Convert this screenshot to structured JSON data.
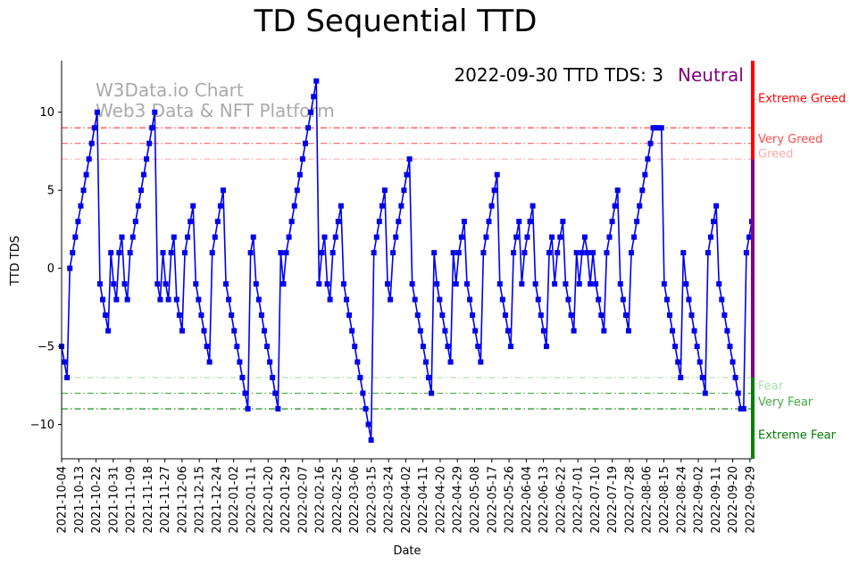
{
  "chart_data": {
    "type": "line",
    "title": "TD Sequential TTD",
    "xlabel": "Date",
    "ylabel": "TTD TDS",
    "ylim": [
      -12.2,
      13.3
    ],
    "yticks": [
      -10,
      -5,
      0,
      5,
      10
    ],
    "x_start": "2021-10-04",
    "x_end": "2022-09-30",
    "xticks": [
      "2021-10-04",
      "2021-10-13",
      "2021-10-22",
      "2021-10-31",
      "2021-11-09",
      "2021-11-18",
      "2021-11-27",
      "2021-12-06",
      "2021-12-15",
      "2021-12-24",
      "2022-01-02",
      "2022-01-11",
      "2022-01-20",
      "2022-01-29",
      "2022-02-07",
      "2022-02-16",
      "2022-02-25",
      "2022-03-06",
      "2022-03-15",
      "2022-03-24",
      "2022-04-02",
      "2022-04-11",
      "2022-04-20",
      "2022-04-29",
      "2022-05-08",
      "2022-05-17",
      "2022-05-26",
      "2022-06-04",
      "2022-06-13",
      "2022-06-22",
      "2022-07-01",
      "2022-07-10",
      "2022-07-19",
      "2022-07-28",
      "2022-08-06",
      "2022-08-15",
      "2022-08-24",
      "2022-09-02",
      "2022-09-11",
      "2022-09-20",
      "2022-09-29"
    ],
    "watermark": [
      "W3Data.io Chart",
      "Web3 Data & NFT Platform"
    ],
    "annotation": {
      "text": "2022-09-30 TTD TDS: 3",
      "status": "Neutral",
      "status_color": "#800080"
    },
    "series": [
      {
        "color": "#0000ee",
        "marker": "square",
        "values": [
          -5,
          -6,
          -7,
          0,
          1,
          2,
          3,
          4,
          5,
          6,
          7,
          8,
          9,
          10,
          -1,
          -2,
          -3,
          -4,
          1,
          -1,
          -2,
          1,
          2,
          -1,
          -2,
          1,
          2,
          3,
          4,
          5,
          6,
          7,
          8,
          9,
          10,
          -1,
          -2,
          1,
          -1,
          -2,
          1,
          2,
          -2,
          -3,
          -4,
          1,
          2,
          3,
          4,
          -1,
          -2,
          -3,
          -4,
          -5,
          -6,
          1,
          2,
          3,
          4,
          5,
          -1,
          -2,
          -3,
          -4,
          -5,
          -6,
          -7,
          -8,
          -9,
          1,
          2,
          -1,
          -2,
          -3,
          -4,
          -5,
          -6,
          -7,
          -8,
          -9,
          1,
          -1,
          1,
          2,
          3,
          4,
          5,
          6,
          7,
          8,
          9,
          10,
          11,
          12,
          -1,
          1,
          2,
          -1,
          -2,
          1,
          2,
          3,
          4,
          -1,
          -2,
          -3,
          -4,
          -5,
          -6,
          -7,
          -8,
          -9,
          -10,
          -11,
          1,
          2,
          3,
          4,
          5,
          -1,
          -2,
          1,
          2,
          3,
          4,
          5,
          6,
          7,
          -1,
          -2,
          -3,
          -4,
          -5,
          -6,
          -7,
          -8,
          1,
          -1,
          -2,
          -3,
          -4,
          -5,
          -6,
          1,
          -1,
          1,
          2,
          3,
          -1,
          -2,
          -3,
          -4,
          -5,
          -6,
          1,
          2,
          3,
          4,
          5,
          6,
          -1,
          -2,
          -3,
          -4,
          -5,
          1,
          2,
          3,
          -1,
          1,
          2,
          3,
          4,
          -1,
          -2,
          -3,
          -4,
          -5,
          1,
          2,
          -1,
          1,
          2,
          3,
          -1,
          -2,
          -3,
          -4,
          1,
          -1,
          1,
          2,
          1,
          -1,
          1,
          -1,
          -2,
          -3,
          -4,
          1,
          2,
          3,
          4,
          5,
          -1,
          -2,
          -3,
          -4,
          1,
          2,
          3,
          4,
          5,
          6,
          7,
          8,
          9,
          9,
          9,
          9,
          -1,
          -2,
          -3,
          -4,
          -5,
          -6,
          -7,
          1,
          -1,
          -2,
          -3,
          -4,
          -5,
          -6,
          -7,
          -8,
          1,
          2,
          3,
          4,
          -1,
          -2,
          -3,
          -4,
          -5,
          -6,
          -7,
          -8,
          -9,
          -9,
          1,
          2,
          3
        ]
      }
    ],
    "thresholds": [
      {
        "label": "Extreme Greed",
        "color": "#ff0000"
      },
      {
        "label": "Very Greed",
        "value": 9,
        "color": "#ff3333",
        "style": "dashdot"
      },
      {
        "label": "Greed",
        "value": 8,
        "color": "#ff6666",
        "style": "dashdot"
      },
      {
        "label": "",
        "value": 7,
        "color": "#ffaaaa",
        "style": "dashdot"
      },
      {
        "label": "Fear",
        "value": -7,
        "color": "#aaddaa",
        "style": "dashdot"
      },
      {
        "label": "Very Fear",
        "value": -8,
        "color": "#44aa44",
        "style": "dashdot"
      },
      {
        "label": "Extreme Fear",
        "value": -9,
        "color": "#008000",
        "style": "dashdot"
      }
    ],
    "right_bar": [
      {
        "from": 7,
        "to": 13.3,
        "color": "#ff0000"
      },
      {
        "from": -7,
        "to": 7,
        "color": "#800080"
      },
      {
        "from": -12.2,
        "to": -7,
        "color": "#008000"
      }
    ],
    "threshold_text_colors": {
      "Extreme Greed": "#ff0000",
      "Very Greed": "#ff4d4d",
      "Greed": "#ffaaaa",
      "Fear": "#aaddaa",
      "Very Fear": "#44aa44",
      "Extreme Fear": "#008000"
    },
    "grid": false
  }
}
